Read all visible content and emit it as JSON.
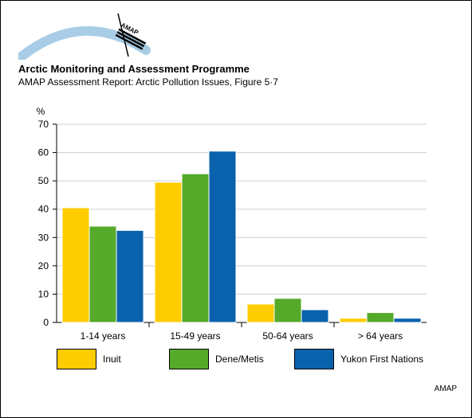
{
  "header": {
    "title": "Arctic Monitoring and Assessment Programme",
    "subtitle": "AMAP Assessment Report: Arctic Pollution Issues, Figure 5·7"
  },
  "logo": {
    "text": "AMAP"
  },
  "credit": "AMAP",
  "colors": {
    "Inuit": "#ffcc00",
    "Dene/Metis": "#55aa2a",
    "Yukon First Nations": "#0a62ad"
  },
  "chart_data": {
    "type": "bar",
    "ylabel": "%",
    "ylim": [
      0,
      70
    ],
    "yticks": [
      0,
      10,
      20,
      30,
      40,
      50,
      60,
      70
    ],
    "grid": true,
    "legend_position": "bottom",
    "categories": [
      "1-14 years",
      "15-49 years",
      "50-64 years",
      "> 64 years"
    ],
    "series": [
      {
        "name": "Inuit",
        "values": [
          40.5,
          49.5,
          6.5,
          1.5
        ]
      },
      {
        "name": "Dene/Metis",
        "values": [
          34,
          52.5,
          8.5,
          3.5
        ]
      },
      {
        "name": "Yukon First Nations",
        "values": [
          32.5,
          60.5,
          4.5,
          1.5
        ]
      }
    ]
  }
}
